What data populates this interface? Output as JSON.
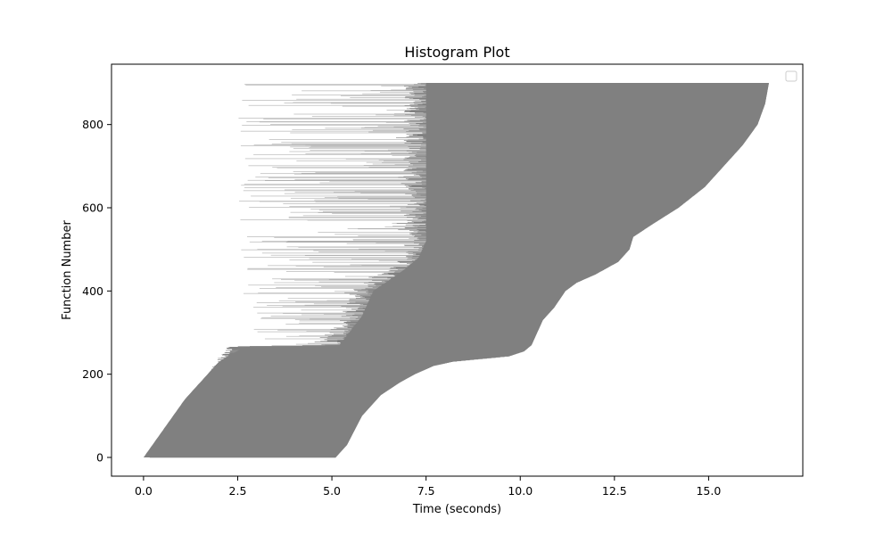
{
  "chart_data": {
    "type": "bar",
    "orientation": "horizontal",
    "title": "Histogram Plot",
    "xlabel": "Time (seconds)",
    "ylabel": "Function Number",
    "xlim": [
      -0.85,
      17.5
    ],
    "ylim": [
      -45,
      945
    ],
    "x_ticks": [
      0.0,
      2.5,
      5.0,
      7.5,
      10.0,
      12.5,
      15.0
    ],
    "x_tick_labels": [
      "0.0",
      "2.5",
      "5.0",
      "7.5",
      "10.0",
      "12.5",
      "15.0"
    ],
    "y_ticks": [
      0,
      200,
      400,
      600,
      800
    ],
    "y_tick_labels": [
      "0",
      "200",
      "400",
      "600",
      "800"
    ],
    "grid": false,
    "legend": {
      "placement": "top-right",
      "entries": []
    },
    "bar_color": "#808080",
    "light_bar_color": "#b0b0b0",
    "function_count": 900,
    "start_profile": [
      [
        0,
        0.0
      ],
      [
        20,
        0.25
      ],
      [
        100,
        0.8
      ],
      [
        140,
        1.15
      ],
      [
        190,
        1.65
      ],
      [
        230,
        1.9
      ],
      [
        265,
        2.2
      ],
      [
        267,
        3.2
      ],
      [
        300,
        2.8
      ],
      [
        400,
        2.6
      ],
      [
        500,
        2.4
      ],
      [
        600,
        2.4
      ],
      [
        700,
        2.6
      ],
      [
        800,
        2.5
      ],
      [
        900,
        2.6
      ]
    ],
    "dense_start_profile": [
      [
        0,
        0.0
      ],
      [
        140,
        1.1
      ],
      [
        230,
        2.0
      ],
      [
        267,
        2.7
      ],
      [
        270,
        5.2
      ],
      [
        340,
        5.8
      ],
      [
        400,
        6.1
      ],
      [
        450,
        6.9
      ],
      [
        480,
        7.3
      ],
      [
        520,
        7.5
      ],
      [
        560,
        7.5
      ],
      [
        900,
        7.5
      ]
    ],
    "end_profile": [
      [
        0,
        5.1
      ],
      [
        30,
        5.4
      ],
      [
        100,
        5.8
      ],
      [
        150,
        6.3
      ],
      [
        180,
        6.8
      ],
      [
        200,
        7.2
      ],
      [
        220,
        7.7
      ],
      [
        230,
        8.2
      ],
      [
        237,
        9.0
      ],
      [
        243,
        9.7
      ],
      [
        255,
        10.1
      ],
      [
        270,
        10.3
      ],
      [
        330,
        10.6
      ],
      [
        360,
        10.9
      ],
      [
        400,
        11.2
      ],
      [
        420,
        11.5
      ],
      [
        440,
        12.0
      ],
      [
        470,
        12.6
      ],
      [
        500,
        12.9
      ],
      [
        530,
        13.0
      ],
      [
        560,
        13.5
      ],
      [
        600,
        14.2
      ],
      [
        650,
        14.9
      ],
      [
        700,
        15.4
      ],
      [
        750,
        15.9
      ],
      [
        800,
        16.3
      ],
      [
        850,
        16.5
      ],
      [
        900,
        16.6
      ]
    ]
  }
}
